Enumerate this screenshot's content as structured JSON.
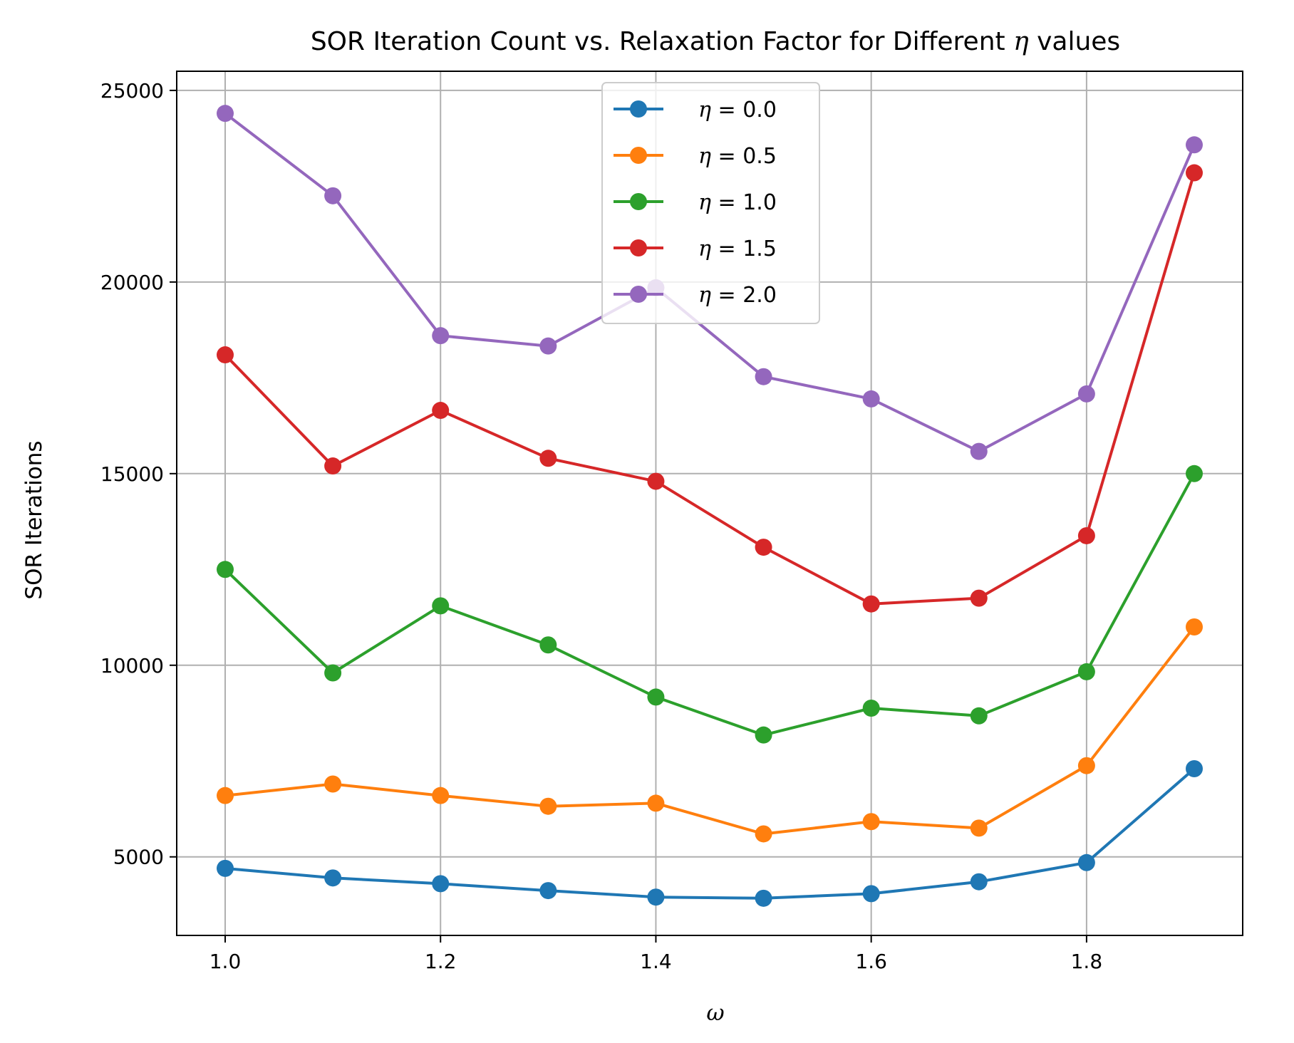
{
  "chart_data": {
    "type": "line",
    "title": "SOR Iteration Count vs. Relaxation Factor for Different η values",
    "title_parts": {
      "before": "SOR Iteration Count vs. Relaxation Factor for Different ",
      "symbol": "η",
      "after": " values"
    },
    "xlabel": "ω",
    "ylabel": "SOR Iterations",
    "xlim": [
      0.955,
      1.945
    ],
    "ylim": [
      2950,
      25500
    ],
    "xticks": [
      1.0,
      1.2,
      1.4,
      1.6,
      1.8
    ],
    "xtick_labels": [
      "1.0",
      "1.2",
      "1.4",
      "1.6",
      "1.8"
    ],
    "yticks": [
      5000,
      10000,
      15000,
      20000,
      25000
    ],
    "ytick_labels": [
      "5000",
      "10000",
      "15000",
      "20000",
      "25000"
    ],
    "grid": true,
    "legend_position": "upper center",
    "x": [
      1.0,
      1.1,
      1.2,
      1.3,
      1.4,
      1.5,
      1.6,
      1.7,
      1.8,
      1.9
    ],
    "series": [
      {
        "name": "η = 0.0",
        "symbol": "η",
        "value_label": " = 0.0",
        "color": "#1f77b4",
        "values": [
          4700,
          4450,
          4300,
          4120,
          3950,
          3920,
          4040,
          4350,
          4850,
          7300
        ]
      },
      {
        "name": "η = 0.5",
        "symbol": "η",
        "value_label": " = 0.5",
        "color": "#ff7f0e",
        "values": [
          6600,
          6900,
          6600,
          6320,
          6400,
          5600,
          5920,
          5750,
          7380,
          11000
        ]
      },
      {
        "name": "η = 1.0",
        "symbol": "η",
        "value_label": " = 1.0",
        "color": "#2ca02c",
        "values": [
          12500,
          9800,
          11550,
          10530,
          9170,
          8180,
          8880,
          8680,
          9830,
          15000
        ]
      },
      {
        "name": "η = 1.5",
        "symbol": "η",
        "value_label": " = 1.5",
        "color": "#d62728",
        "values": [
          18100,
          15200,
          16650,
          15400,
          14800,
          13080,
          11600,
          11750,
          13380,
          22850
        ]
      },
      {
        "name": "η = 2.0",
        "symbol": "η",
        "value_label": " = 2.0",
        "color": "#9467bd",
        "values": [
          24400,
          22250,
          18600,
          18330,
          19850,
          17530,
          16950,
          15580,
          17080,
          23580
        ]
      }
    ]
  }
}
